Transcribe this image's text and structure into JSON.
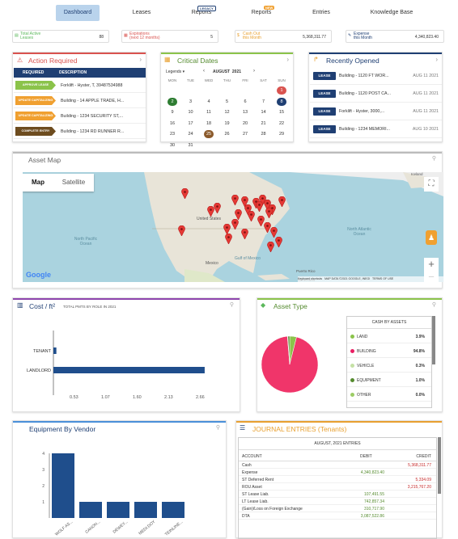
{
  "nav": {
    "items": [
      {
        "label": "Dashboard"
      },
      {
        "label": "Leases"
      },
      {
        "label": "Reports",
        "badge": "LEGACY"
      },
      {
        "label": "Reports",
        "badge": "NEW"
      },
      {
        "label": "Entries"
      },
      {
        "label": "Knowledge Base"
      }
    ]
  },
  "summary": [
    {
      "label": "Total Active",
      "sub": "Leases",
      "value": "88",
      "icon": "doc-icon",
      "color": "#5cb85c"
    },
    {
      "label": "Expirations",
      "sub": "(next 12 months)",
      "value": "5",
      "icon": "calendar-icon",
      "color": "#d9534f"
    },
    {
      "label": "Cash Out",
      "sub": "this Month",
      "value": "5,368,311.77",
      "icon": "cash-icon",
      "color": "#e8a030"
    },
    {
      "label": "Expense",
      "sub": "this Month",
      "value": "4,340,823.40",
      "icon": "expense-icon",
      "color": "#1f3f73"
    }
  ],
  "action": {
    "title": "Action Required",
    "col_required": "REQUIRED",
    "col_description": "DESCRIPTION",
    "rows": [
      {
        "tag": "APPROVE LEASE",
        "color": "#8bc34a",
        "desc": "Forklift - Hyster, T, 39487534988"
      },
      {
        "tag": "UPDATE CAPITALIZING",
        "color": "#f0a030",
        "desc": "Building - 14 APPLE TRADE, H..."
      },
      {
        "tag": "UPDATE CAPITALIZING",
        "color": "#f0a030",
        "desc": "Building - 1234 SECURITY ST,..."
      },
      {
        "tag": "COMPLETE ENTRY",
        "color": "#6d4c1f",
        "desc": "Building - 1234 RD RUNNER R..."
      }
    ]
  },
  "calendar": {
    "title": "Critical Dates",
    "legends": "Legends",
    "month": "AUGUST",
    "year": "2021",
    "days": [
      "MON",
      "TUE",
      "WED",
      "THU",
      "FRI",
      "SAT",
      "SUN"
    ],
    "rows": [
      [
        "",
        "",
        "",
        "",
        "",
        "",
        "1"
      ],
      [
        "2",
        "3",
        "4",
        "5",
        "6",
        "7",
        "8"
      ],
      [
        "9",
        "10",
        "11",
        "12",
        "13",
        "14",
        "15"
      ],
      [
        "16",
        "17",
        "18",
        "19",
        "20",
        "21",
        "22"
      ],
      [
        "23",
        "24",
        "25",
        "26",
        "27",
        "28",
        "29"
      ],
      [
        "30",
        "31",
        "",
        "",
        "",
        "",
        ""
      ]
    ]
  },
  "recent": {
    "title": "Recently Opened",
    "items": [
      {
        "tag": "LEASE",
        "desc": "Building - 1120 FT WOR...",
        "date": "AUG 11 2021"
      },
      {
        "tag": "LEASE",
        "desc": "Building - 1120 POST CA...",
        "date": "AUG 11 2021"
      },
      {
        "tag": "LEASE",
        "desc": "Forklift - Hyster, 3000,...",
        "date": "AUG 11 2021"
      },
      {
        "tag": "LEASE",
        "desc": "Building - 1234 MEMORI...",
        "date": "AUG 10 2021"
      }
    ]
  },
  "map": {
    "title": "Asset Map",
    "btn_map": "Map",
    "btn_sat": "Satellite",
    "labels": [
      {
        "text": "North Pacific Ocean"
      },
      {
        "text": "North Atlantic Ocean"
      },
      {
        "text": "United States"
      },
      {
        "text": "Mexico"
      },
      {
        "text": "Gulf of Mexico"
      },
      {
        "text": "Puerto Rico"
      },
      {
        "text": "Iceland"
      },
      {
        "text": "Venezuela"
      }
    ],
    "footer": {
      "shortcuts": "Keyboard shortcuts",
      "data": "MAP DATA ©2021 GOOGLE, INEGI",
      "terms": "TERMS OF USE"
    },
    "google": "Google"
  },
  "cost": {
    "title": "Cost / ft²",
    "subtitle": "TOTAL PMTS BY ROLE IN 2021"
  },
  "asset_type": {
    "title": "Asset Type",
    "table_title": "CASH BY ASSETS",
    "rows": [
      {
        "label": "LAND",
        "value": "3.9%",
        "color": "#8bc34a"
      },
      {
        "label": "BUILDING",
        "value": "94.8%",
        "color": "#e91e63"
      },
      {
        "label": "VEHICLE",
        "value": "0.3%",
        "color": "#c5e1a5"
      },
      {
        "label": "EQUIPMENT",
        "value": "1.0%",
        "color": "#558b2f"
      },
      {
        "label": "OTHER",
        "value": "0.0%",
        "color": "#9ccc65"
      }
    ]
  },
  "vendor": {
    "title": "Equipment By Vendor"
  },
  "journal": {
    "title": "JOURNAL ENTRIES (Tenants)",
    "period": "AUGUST, 2021 ENTRIES",
    "col_account": "ACCOUNT",
    "col_debit": "DEBIT",
    "col_credit": "CREDIT",
    "rows": [
      {
        "account": "Cash",
        "debit": "",
        "credit": "5,368,311.77"
      },
      {
        "account": "Expense",
        "debit": "4,340,823.40",
        "credit": ""
      },
      {
        "account": "ST Deferred Rent",
        "debit": "",
        "credit": "5,334.09"
      },
      {
        "account": "ROU Asset",
        "debit": "",
        "credit": "3,215,767.20"
      },
      {
        "account": "ST Lease Liab.",
        "debit": "107,491.55",
        "credit": ""
      },
      {
        "account": "LT Lease Liab.",
        "debit": "742,857.34",
        "credit": ""
      },
      {
        "account": "(Gain)/Loss on Foreign Exchange",
        "debit": "310,717.90",
        "credit": ""
      },
      {
        "account": "DTA",
        "debit": "3,087,522.86",
        "credit": ""
      }
    ]
  },
  "chart_data": [
    {
      "type": "bar",
      "orientation": "horizontal",
      "title": "Cost / ft²",
      "categories": [
        "TENANT",
        "LANDLORD"
      ],
      "values": [
        0.05,
        2.55
      ],
      "xticks": [
        "0.53",
        "1.07",
        "1.60",
        "2.13",
        "2.66"
      ],
      "xlim": [
        0,
        2.66
      ],
      "color": "#1f4e8c"
    },
    {
      "type": "pie",
      "title": "Asset Type",
      "categories": [
        "LAND",
        "BUILDING",
        "VEHICLE",
        "EQUIPMENT",
        "OTHER"
      ],
      "values": [
        3.9,
        94.8,
        0.3,
        1.0,
        0.0
      ],
      "colors": [
        "#8bc34a",
        "#f0356a",
        "#c5e1a5",
        "#558b2f",
        "#9ccc65"
      ]
    },
    {
      "type": "bar",
      "title": "Equipment By Vendor",
      "categories": [
        "WOLF AS...",
        "CANON...",
        "DEWEY...",
        "MEDI.DOY",
        "TEINLINE..."
      ],
      "values": [
        4,
        1,
        1,
        1,
        1
      ],
      "ylim": [
        0,
        4
      ],
      "yticks": [
        "1",
        "2",
        "3",
        "4"
      ],
      "color": "#1f4e8c"
    }
  ]
}
